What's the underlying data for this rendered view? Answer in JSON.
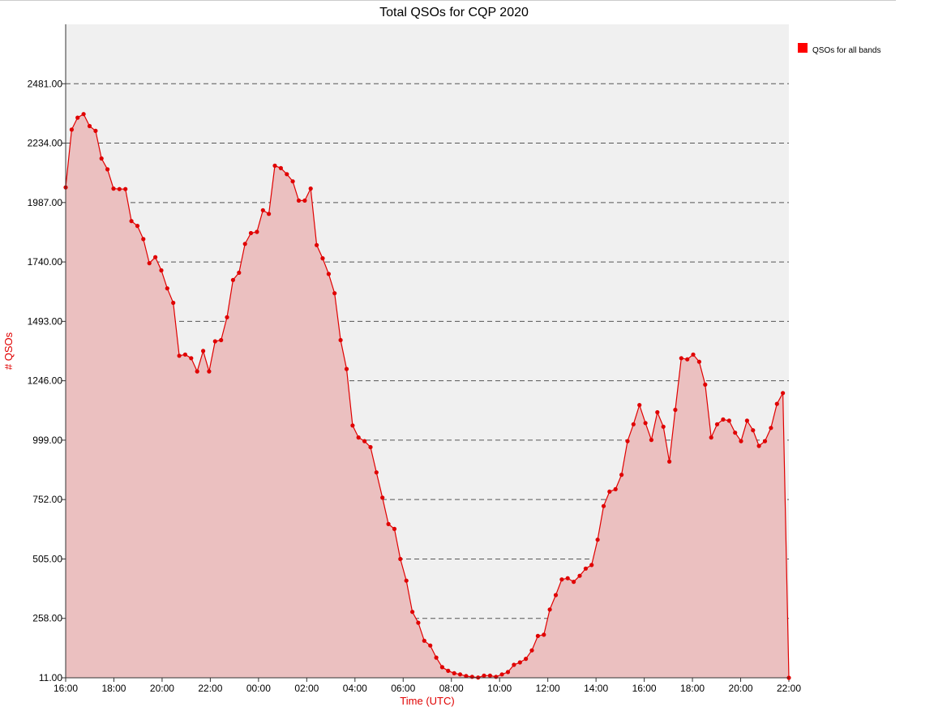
{
  "chart_data": {
    "type": "area",
    "title": "Total QSOs for CQP 2020",
    "xlabel": "Time (UTC)",
    "ylabel": "# QSOs",
    "ylim": [
      11,
      2728
    ],
    "yticks": [
      "11.00",
      "258.00",
      "505.00",
      "752.00",
      "999.00",
      "1246.00",
      "1493.00",
      "1740.00",
      "1987.00",
      "2234.00",
      "2481.00"
    ],
    "xticks": [
      "16:00",
      "18:00",
      "20:00",
      "22:00",
      "00:00",
      "02:00",
      "04:00",
      "06:00",
      "08:00",
      "10:00",
      "12:00",
      "14:00",
      "16:00",
      "18:00",
      "20:00",
      "22:00"
    ],
    "grid": "horizontal dashed",
    "legend_position": "top-right",
    "colors": {
      "line": "#e00000",
      "fill": "#ebc0c0",
      "plot_bg": "#f0f0f0",
      "grid": "#555555"
    },
    "series": [
      {
        "name": "QSOs for all bands",
        "values": [
          2050,
          2290,
          2340,
          2355,
          2305,
          2285,
          2170,
          2125,
          2045,
          2043,
          2043,
          1910,
          1890,
          1835,
          1735,
          1760,
          1705,
          1630,
          1570,
          1350,
          1355,
          1340,
          1285,
          1370,
          1285,
          1410,
          1415,
          1510,
          1665,
          1695,
          1815,
          1860,
          1865,
          1955,
          1940,
          2140,
          2130,
          2105,
          2075,
          1995,
          1995,
          2045,
          1810,
          1755,
          1690,
          1610,
          1415,
          1295,
          1060,
          1010,
          995,
          970,
          865,
          760,
          650,
          630,
          505,
          415,
          285,
          240,
          165,
          145,
          95,
          55,
          40,
          30,
          25,
          18,
          15,
          12,
          20,
          20,
          15,
          25,
          35,
          65,
          75,
          90,
          125,
          185,
          190,
          295,
          355,
          420,
          425,
          410,
          435,
          465,
          480,
          585,
          725,
          785,
          795,
          855,
          995,
          1065,
          1145,
          1070,
          1000,
          1115,
          1055,
          910,
          1125,
          1340,
          1335,
          1355,
          1325,
          1230,
          1010,
          1065,
          1085,
          1080,
          1030,
          995,
          1080,
          1040,
          975,
          995,
          1050,
          1150,
          1195,
          11
        ]
      }
    ]
  }
}
